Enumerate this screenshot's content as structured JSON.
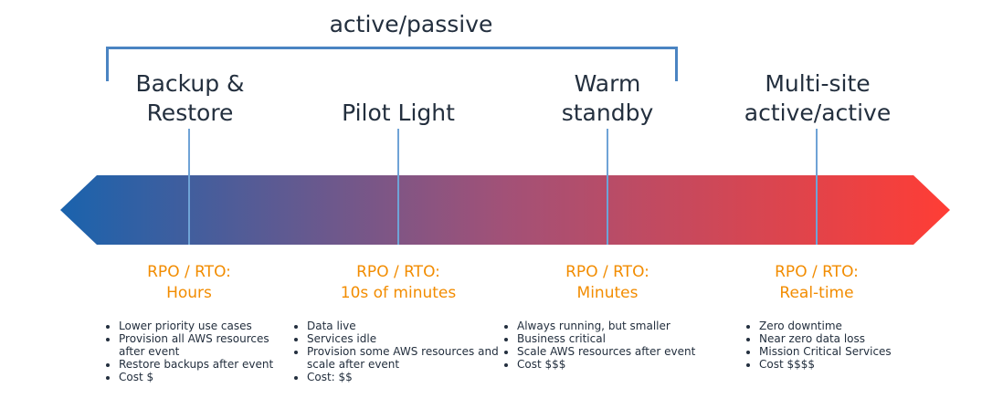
{
  "bracket": {
    "label": "active/passive"
  },
  "colors": {
    "gradient_start": "#1a63ad",
    "gradient_mid": "#a25177",
    "gradient_end": "#ff3d35",
    "bracket": "#4a84c2",
    "rpo_text": "#f28c00",
    "tick": "#6fa3d6"
  },
  "strategies": [
    {
      "name_line1": "Backup &",
      "name_line2": "Restore",
      "rpo_label": "RPO / RTO:",
      "rpo_value": "Hours",
      "bullets": [
        "Lower priority use cases",
        "Provision all AWS resources after event",
        "Restore backups after event",
        "Cost $"
      ]
    },
    {
      "name_line1": "Pilot Light",
      "name_line2": "",
      "rpo_label": "RPO / RTO:",
      "rpo_value": "10s of minutes",
      "bullets": [
        "Data live",
        "Services idle",
        "Provision some AWS resources and scale after event",
        "Cost: $$"
      ]
    },
    {
      "name_line1": "Warm",
      "name_line2": "standby",
      "rpo_label": "RPO / RTO:",
      "rpo_value": "Minutes",
      "bullets": [
        "Always running, but smaller",
        "Business critical",
        "Scale AWS resources after event",
        "Cost $$$"
      ]
    },
    {
      "name_line1": "Multi-site",
      "name_line2": "active/active",
      "rpo_label": "RPO / RTO:",
      "rpo_value": "Real-time",
      "bullets": [
        "Zero downtime",
        "Near zero data loss",
        "Mission Critical Services",
        "Cost $$$$"
      ]
    }
  ]
}
